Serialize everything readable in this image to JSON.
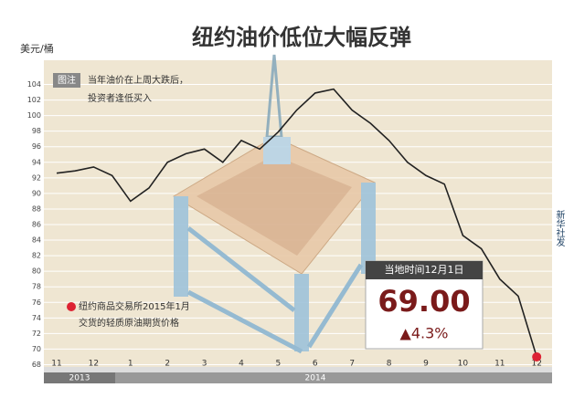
{
  "chart_data": {
    "type": "line",
    "title": "纽约油价低位大幅反弹",
    "y_label": "美元/桶",
    "note_tag": "图注",
    "note_text": [
      "当年油价在上周大跌后，",
      "投资者逢低买入"
    ],
    "legend_note": [
      "纽约商品交易所2015年1月",
      "交货的轻质原油期货价格"
    ],
    "callout_title": "当地时间12月1日",
    "change_label": "▲4.3%",
    "source": "新华社发",
    "years": [
      "2013",
      "2014"
    ],
    "categories": [
      "11",
      null,
      "12",
      null,
      "1",
      null,
      "2",
      null,
      "3",
      null,
      "4",
      null,
      "5",
      null,
      "6",
      null,
      "7",
      null,
      "8",
      null,
      "9",
      null,
      "10",
      null,
      "11",
      null,
      "12"
    ],
    "series": [
      {
        "name": "纽约油价",
        "color": "#222222",
        "values": [
          92.6,
          92.9,
          93.4,
          92.3,
          89,
          90.7,
          94,
          95.1,
          95.7,
          94,
          96.8,
          95.7,
          97.9,
          100.7,
          102.9,
          103.4,
          100.7,
          99,
          96.8,
          94,
          92.3,
          91.2,
          84.6,
          82.9,
          79,
          76.8,
          69
        ],
        "value_labels": [
          null,
          null,
          null,
          null,
          null,
          null,
          null,
          null,
          null,
          null,
          null,
          null,
          null,
          null,
          null,
          null,
          null,
          null,
          null,
          null,
          null,
          null,
          null,
          null,
          null,
          null,
          "69.00"
        ]
      }
    ],
    "ylim": [
      67,
      105
    ],
    "yticks": [
      68,
      70,
      72,
      74,
      76,
      78,
      80,
      82,
      84,
      86,
      88,
      90,
      92,
      94,
      96,
      98,
      100,
      102,
      104
    ],
    "grid": true
  }
}
